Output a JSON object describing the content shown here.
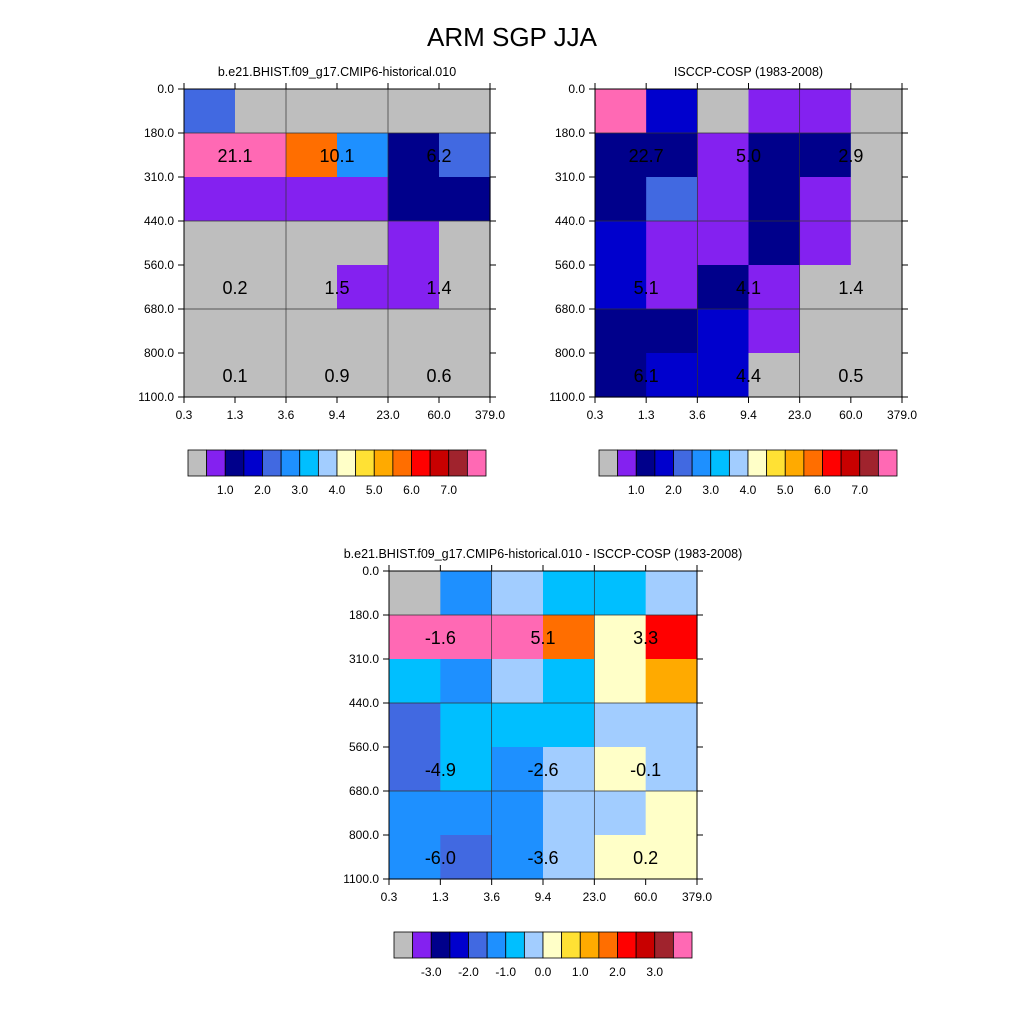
{
  "title": "ARM SGP JJA",
  "colors": {
    "gray": "#BEBEBE",
    "purple": "#8421F0",
    "navy": "#00008B",
    "blue": "#0000CD",
    "royal": "#4169E1",
    "dodger": "#1E90FF",
    "sky": "#00BFFF",
    "lightblue": "#A2CDFF",
    "cream": "#FFFFC8",
    "gold": "#FFE134",
    "orange": "#FFAA00",
    "dorange": "#FF6E00",
    "red": "#FF0000",
    "dred": "#C80000",
    "brown": "#A0232D",
    "pink": "#FF69B4"
  },
  "chart_data": [
    {
      "type": "heatmap",
      "title": "b.e21.BHIST.f09_g17.CMIP6-historical.010",
      "x_ticks": [
        "0.3",
        "1.3",
        "3.6",
        "9.4",
        "23.0",
        "60.0",
        "379.0"
      ],
      "y_ticks": [
        "0.0",
        "180.0",
        "310.0",
        "440.0",
        "560.0",
        "680.0",
        "800.0",
        "1100.0"
      ],
      "cells": [
        [
          "royal",
          "gray",
          "gray",
          "gray",
          "gray",
          "gray"
        ],
        [
          "pink",
          "pink",
          "dorange",
          "dodger",
          "navy",
          "royal"
        ],
        [
          "purple",
          "purple",
          "purple",
          "purple",
          "navy",
          "navy"
        ],
        [
          "gray",
          "gray",
          "gray",
          "gray",
          "purple",
          "gray"
        ],
        [
          "gray",
          "gray",
          "gray",
          "purple",
          "purple",
          "gray"
        ],
        [
          "gray",
          "gray",
          "gray",
          "gray",
          "gray",
          "gray"
        ],
        [
          "gray",
          "gray",
          "gray",
          "gray",
          "gray",
          "gray"
        ]
      ],
      "annotations": [
        {
          "value": "21.1",
          "col": 1,
          "row": 1
        },
        {
          "value": "10.1",
          "col": 3,
          "row": 1
        },
        {
          "value": "6.2",
          "col": 5,
          "row": 1
        },
        {
          "value": "0.2",
          "col": 1,
          "row": 4
        },
        {
          "value": "1.5",
          "col": 3,
          "row": 4
        },
        {
          "value": "1.4",
          "col": 5,
          "row": 4
        },
        {
          "value": "0.1",
          "col": 1,
          "row": 6
        },
        {
          "value": "0.9",
          "col": 3,
          "row": 6
        },
        {
          "value": "0.6",
          "col": 5,
          "row": 6
        }
      ],
      "colorbar": {
        "colors": [
          "gray",
          "purple",
          "navy",
          "blue",
          "royal",
          "dodger",
          "sky",
          "lightblue",
          "cream",
          "gold",
          "orange",
          "dorange",
          "red",
          "dred",
          "brown",
          "pink"
        ],
        "labels": [
          "1.0",
          "2.0",
          "3.0",
          "4.0",
          "5.0",
          "6.0",
          "7.0"
        ]
      }
    },
    {
      "type": "heatmap",
      "title": "ISCCP-COSP (1983-2008)",
      "x_ticks": [
        "0.3",
        "1.3",
        "3.6",
        "9.4",
        "23.0",
        "60.0",
        "379.0"
      ],
      "y_ticks": [
        "0.0",
        "180.0",
        "310.0",
        "440.0",
        "560.0",
        "680.0",
        "800.0",
        "1100.0"
      ],
      "cells": [
        [
          "pink",
          "blue",
          "gray",
          "purple",
          "purple",
          "gray"
        ],
        [
          "navy",
          "navy",
          "purple",
          "navy",
          "navy",
          "gray"
        ],
        [
          "navy",
          "royal",
          "purple",
          "navy",
          "purple",
          "gray"
        ],
        [
          "blue",
          "purple",
          "purple",
          "navy",
          "purple",
          "gray"
        ],
        [
          "blue",
          "purple",
          "navy",
          "purple",
          "gray",
          "gray"
        ],
        [
          "navy",
          "navy",
          "blue",
          "purple",
          "gray",
          "gray"
        ],
        [
          "navy",
          "blue",
          "blue",
          "gray",
          "gray",
          "gray"
        ]
      ],
      "annotations": [
        {
          "value": "22.7",
          "col": 1,
          "row": 1
        },
        {
          "value": "5.0",
          "col": 3,
          "row": 1
        },
        {
          "value": "2.9",
          "col": 5,
          "row": 1
        },
        {
          "value": "5.1",
          "col": 1,
          "row": 4
        },
        {
          "value": "4.1",
          "col": 3,
          "row": 4
        },
        {
          "value": "1.4",
          "col": 5,
          "row": 4
        },
        {
          "value": "6.1",
          "col": 1,
          "row": 6
        },
        {
          "value": "4.4",
          "col": 3,
          "row": 6
        },
        {
          "value": "0.5",
          "col": 5,
          "row": 6
        }
      ],
      "colorbar": {
        "colors": [
          "gray",
          "purple",
          "navy",
          "blue",
          "royal",
          "dodger",
          "sky",
          "lightblue",
          "cream",
          "gold",
          "orange",
          "dorange",
          "red",
          "dred",
          "brown",
          "pink"
        ],
        "labels": [
          "1.0",
          "2.0",
          "3.0",
          "4.0",
          "5.0",
          "6.0",
          "7.0"
        ]
      }
    },
    {
      "type": "heatmap",
      "title": "b.e21.BHIST.f09_g17.CMIP6-historical.010 - ISCCP-COSP (1983-2008)",
      "x_ticks": [
        "0.3",
        "1.3",
        "3.6",
        "9.4",
        "23.0",
        "60.0",
        "379.0"
      ],
      "y_ticks": [
        "0.0",
        "180.0",
        "310.0",
        "440.0",
        "560.0",
        "680.0",
        "800.0",
        "1100.0"
      ],
      "cells": [
        [
          "gray",
          "dodger",
          "lightblue",
          "sky",
          "sky",
          "lightblue"
        ],
        [
          "pink",
          "pink",
          "pink",
          "dorange",
          "cream",
          "red"
        ],
        [
          "sky",
          "dodger",
          "lightblue",
          "sky",
          "cream",
          "orange"
        ],
        [
          "royal",
          "sky",
          "sky",
          "sky",
          "lightblue",
          "lightblue"
        ],
        [
          "royal",
          "sky",
          "dodger",
          "lightblue",
          "cream",
          "lightblue"
        ],
        [
          "dodger",
          "dodger",
          "dodger",
          "lightblue",
          "lightblue",
          "cream"
        ],
        [
          "dodger",
          "royal",
          "dodger",
          "lightblue",
          "cream",
          "cream"
        ]
      ],
      "annotations": [
        {
          "value": "-1.6",
          "col": 1,
          "row": 1
        },
        {
          "value": "5.1",
          "col": 3,
          "row": 1
        },
        {
          "value": "3.3",
          "col": 5,
          "row": 1
        },
        {
          "value": "-4.9",
          "col": 1,
          "row": 4
        },
        {
          "value": "-2.6",
          "col": 3,
          "row": 4
        },
        {
          "value": "-0.1",
          "col": 5,
          "row": 4
        },
        {
          "value": "-6.0",
          "col": 1,
          "row": 6
        },
        {
          "value": "-3.6",
          "col": 3,
          "row": 6
        },
        {
          "value": "0.2",
          "col": 5,
          "row": 6
        }
      ],
      "colorbar": {
        "colors": [
          "gray",
          "purple",
          "navy",
          "blue",
          "royal",
          "dodger",
          "sky",
          "lightblue",
          "cream",
          "gold",
          "orange",
          "dorange",
          "red",
          "dred",
          "brown",
          "pink"
        ],
        "labels": [
          "-3.0",
          "-2.0",
          "-1.0",
          "0.0",
          "1.0",
          "2.0",
          "3.0"
        ]
      }
    }
  ]
}
